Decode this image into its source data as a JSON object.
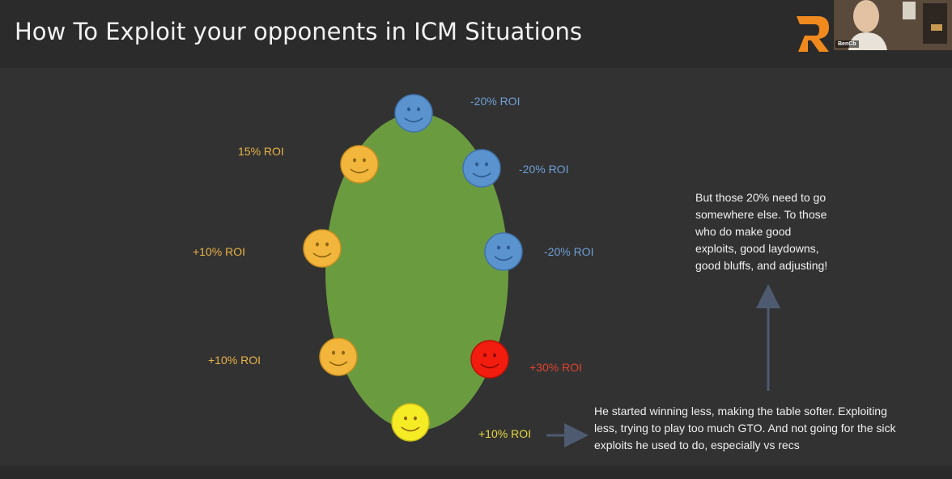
{
  "slide": {
    "title": "How To Exploit your opponents in ICM Situations",
    "presenter_name": "BenCb"
  },
  "colors": {
    "background": "#323232",
    "table": "#6b9b3f",
    "orange_face": "#f3b63c",
    "blue_face": "#5b93cf",
    "red_face": "#f21c0f",
    "yellow_face": "#f6ec26",
    "orange_text": "#e8b448",
    "blue_text": "#6f9fd6",
    "red_text": "#e0432f",
    "yellow_text": "#e6d83e",
    "arrow": "#4e5a70"
  },
  "players": [
    {
      "face": "blue",
      "roi": "-20% ROI"
    },
    {
      "face": "blue",
      "roi": "-20% ROI"
    },
    {
      "face": "blue",
      "roi": "-20% ROI"
    },
    {
      "face": "red",
      "roi": "+30% ROI"
    },
    {
      "face": "yellow",
      "roi": "+10% ROI"
    },
    {
      "face": "orange",
      "roi": "+10% ROI"
    },
    {
      "face": "orange",
      "roi": "+10% ROI"
    },
    {
      "face": "orange",
      "roi": "15% ROI"
    }
  ],
  "notes": {
    "bottom": "He started winning less, making the table softer. Exploiting less, trying to play too much GTO. And not going for the sick exploits he used to do, especially vs recs",
    "top_right": "But those 20% need to go somewhere else. To those who do make good exploits, good laydowns, good bluffs, and adjusting!"
  }
}
